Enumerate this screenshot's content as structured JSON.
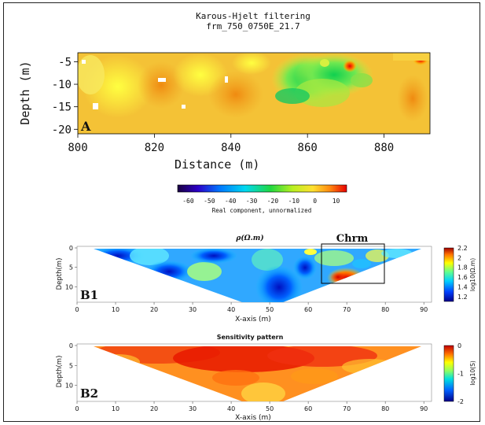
{
  "chart_data": [
    {
      "type": "heatmap",
      "title": "Karous-Hjelt filtering",
      "subtitle": "frm_750_0750E_21.7",
      "panel_label": "A",
      "xlabel": "Distance (m)",
      "ylabel": "Depth (m)",
      "xlim": [
        800,
        892
      ],
      "ylim": [
        -21,
        -3
      ],
      "xticks": [
        "800",
        "820",
        "840",
        "860",
        "880"
      ],
      "yticks": [
        "-5",
        "-10",
        "-15",
        "-20"
      ],
      "colorbar": {
        "label": "Real component, unnormalized",
        "range": [
          -65,
          15
        ],
        "ticks": [
          "-60",
          "-50",
          "-40",
          "-30",
          "-20",
          "-10",
          "0",
          "10"
        ]
      }
    },
    {
      "type": "heatmap",
      "title": "ρ(Ω.m)",
      "panel_label": "B1",
      "annotation": "Chrm",
      "annotation_box_x": [
        64,
        80
      ],
      "annotation_box_depth": [
        0,
        12.5
      ],
      "xlabel": "X-axis (m)",
      "ylabel": "Depth(m)",
      "xlim": [
        0,
        92
      ],
      "ylim": [
        0,
        14
      ],
      "xticks": [
        "0",
        "10",
        "20",
        "30",
        "40",
        "50",
        "60",
        "70",
        "80",
        "90"
      ],
      "yticks": [
        "0",
        "5",
        "10"
      ],
      "colorbar": {
        "label": "log10(Ω.m)",
        "range": [
          1.1,
          2.2
        ],
        "ticks": [
          "2.2",
          "2",
          "1.8",
          "1.6",
          "1.4",
          "1.2"
        ]
      }
    },
    {
      "type": "heatmap",
      "title": "Sensitivity pattern",
      "panel_label": "B2",
      "xlabel": "X-axis (m)",
      "ylabel": "Depth(m)",
      "xlim": [
        0,
        92
      ],
      "ylim": [
        0,
        14
      ],
      "xticks": [
        "0",
        "10",
        "20",
        "30",
        "40",
        "50",
        "60",
        "70",
        "80",
        "90"
      ],
      "yticks": [
        "0",
        "5",
        "10"
      ],
      "colorbar": {
        "label": "log10(S)",
        "range": [
          -2,
          0
        ],
        "ticks": [
          "0",
          "-1",
          "-2"
        ]
      }
    }
  ]
}
